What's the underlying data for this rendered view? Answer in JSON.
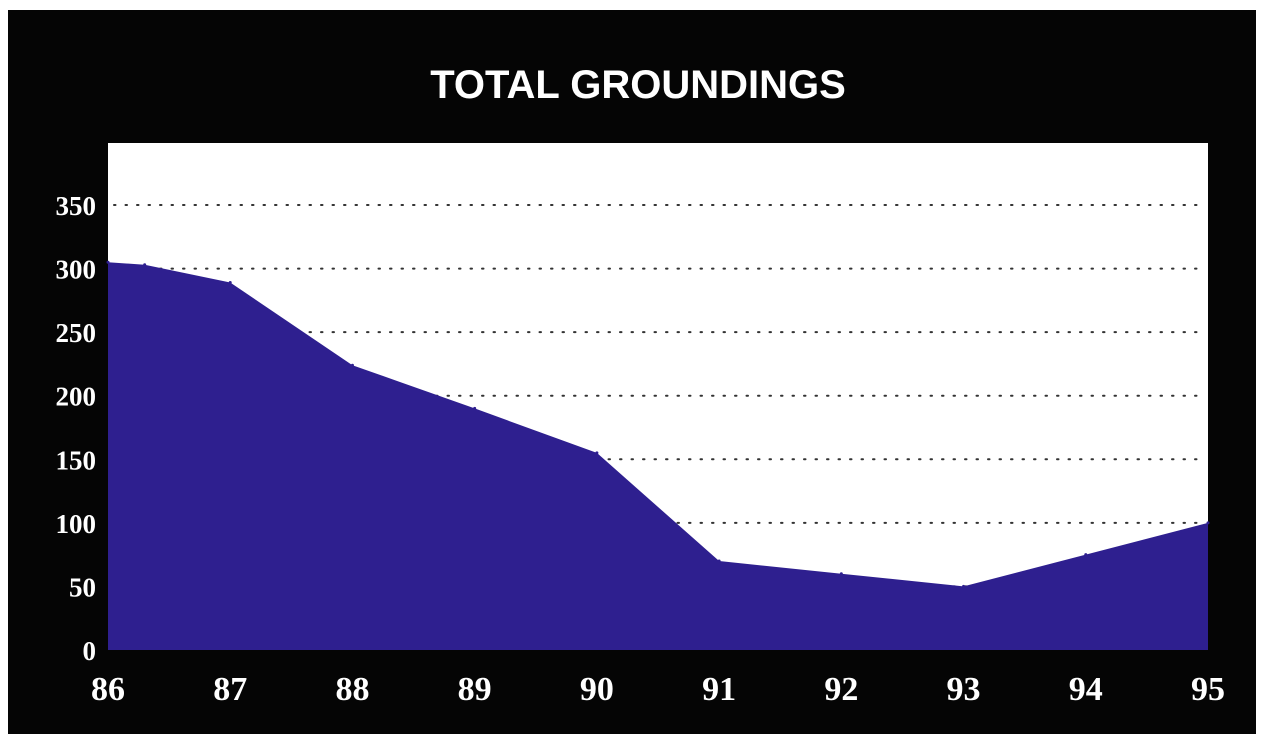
{
  "chart_data": {
    "type": "area",
    "title": "TOTAL GROUNDINGS",
    "xlabel": "",
    "ylabel": "",
    "x_ticks": [
      "86",
      "87",
      "88",
      "89",
      "90",
      "91",
      "92",
      "93",
      "94",
      "95"
    ],
    "y_ticks": [
      "0",
      "50",
      "100",
      "150",
      "200",
      "250",
      "300",
      "350"
    ],
    "ylim": [
      0,
      350
    ],
    "grid": "dotted horizontal",
    "legend": "none",
    "series": [
      {
        "x": [
          86,
          86.3,
          87,
          88,
          89,
          90,
          91,
          92,
          93,
          94,
          95
        ],
        "values": [
          305,
          303,
          289,
          224,
          190,
          155,
          70,
          60,
          50,
          75,
          100
        ]
      }
    ],
    "colors": {
      "background": "#050505",
      "plot_area": "#ffffff",
      "fill": "#2e1f8f",
      "text": "#ffffff",
      "grid": "#333333"
    }
  }
}
